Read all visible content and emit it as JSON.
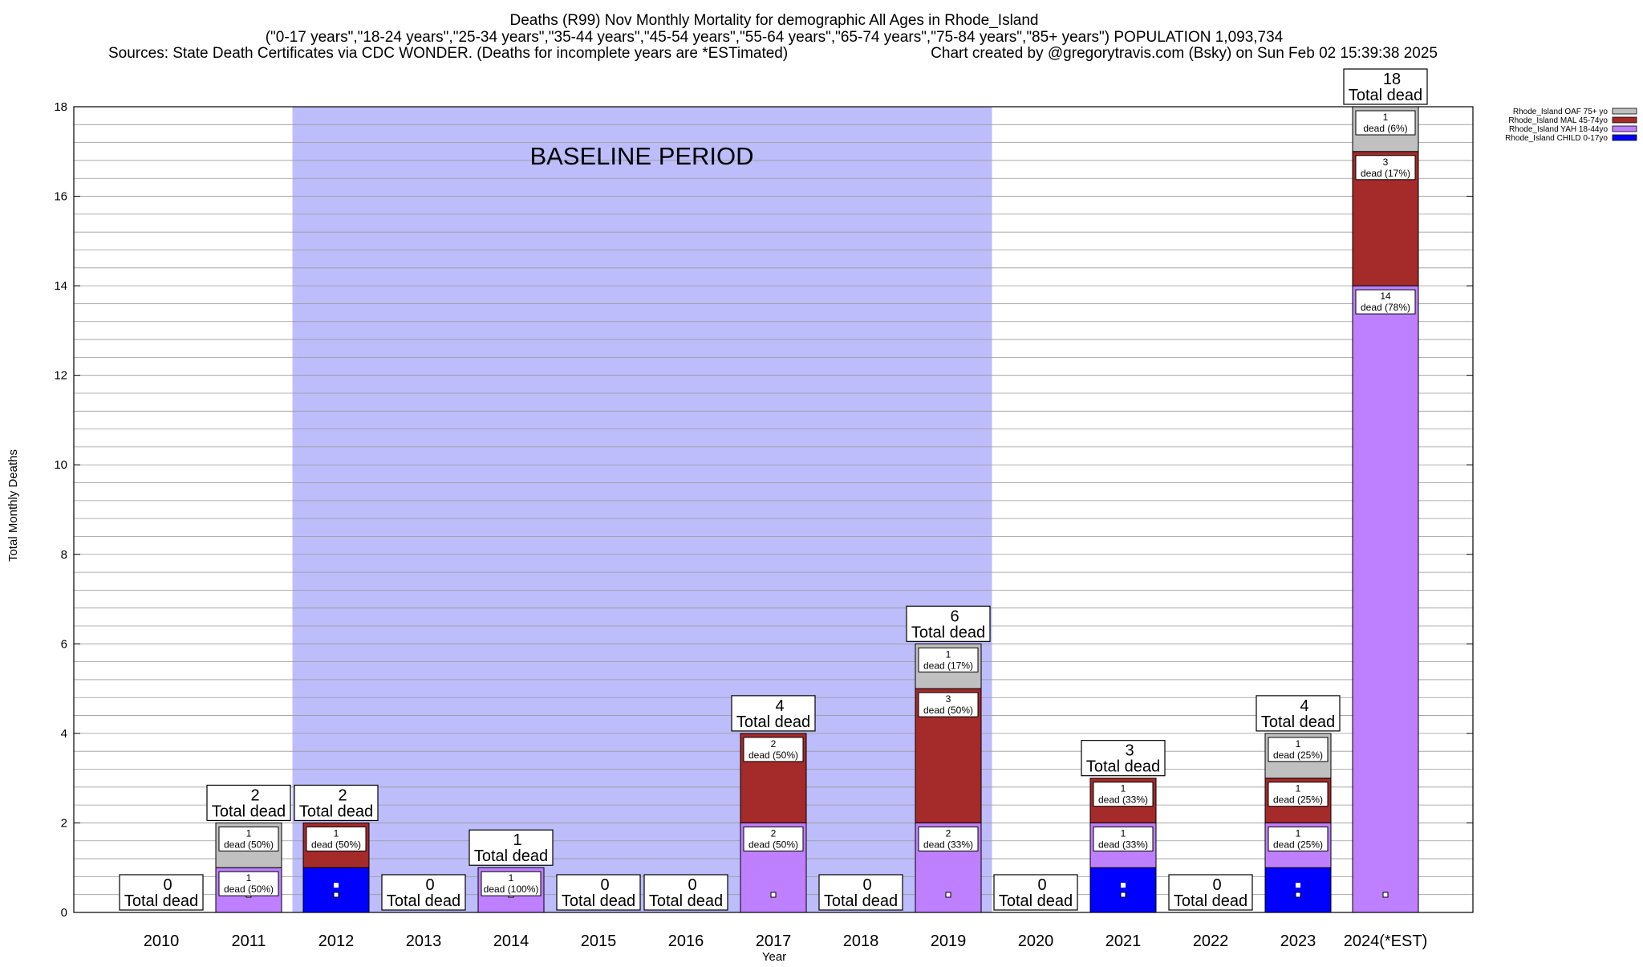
{
  "title": {
    "line1": "Deaths (R99) Nov Monthly Mortality for demographic All Ages in Rhode_Island",
    "line2": "(\"0-17 years\",\"18-24 years\",\"25-34 years\",\"35-44 years\",\"45-54 years\",\"55-64 years\",\"65-74 years\",\"75-84 years\",\"85+ years\") POPULATION 1,093,734",
    "line3_left": "Sources: State Death Certificates via CDC WONDER. (Deaths for incomplete years are *ESTimated)",
    "line3_right": "Chart created by @gregorytravis.com (Bsky) on Sun Feb 02 15:39:38 2025"
  },
  "baseline_label": "BASELINE PERIOD",
  "total_word": "Total dead",
  "colors": {
    "baseline_band": "#bdbdfb",
    "CHILD": "#0000ff",
    "YAH": "#bf80ff",
    "MAL": "#a52a2a",
    "OAF": "#c0c0c0"
  },
  "chart_data": {
    "type": "bar",
    "stacked": true,
    "xlabel": "Year",
    "ylabel": "Total Monthly Deaths",
    "ylim": [
      0,
      18
    ],
    "y_ticks": [
      "0",
      "2",
      "4",
      "6",
      "8",
      "10",
      "12",
      "14",
      "16",
      "18"
    ],
    "grid": true,
    "legend_position": "top-right",
    "baseline_period": [
      "2012",
      "2019"
    ],
    "categories": [
      "2010",
      "2011",
      "2012",
      "2013",
      "2014",
      "2015",
      "2016",
      "2017",
      "2018",
      "2019",
      "2020",
      "2021",
      "2022",
      "2023",
      "2024(*EST)"
    ],
    "series": [
      {
        "key": "CHILD",
        "name": "Rhode_Island CHILD 0-17yo",
        "values": [
          0,
          0,
          1,
          0,
          0,
          0,
          0,
          0,
          0,
          0,
          0,
          1,
          0,
          1,
          0
        ]
      },
      {
        "key": "YAH",
        "name": "Rhode_Island YAH 18-44yo",
        "values": [
          0,
          1,
          0,
          0,
          1,
          0,
          0,
          2,
          0,
          2,
          0,
          1,
          0,
          1,
          14
        ]
      },
      {
        "key": "MAL",
        "name": "Rhode_Island MAL 45-74yo",
        "values": [
          0,
          0,
          1,
          0,
          0,
          0,
          0,
          2,
          0,
          3,
          0,
          1,
          0,
          1,
          3
        ]
      },
      {
        "key": "OAF",
        "name": "Rhode_Island OAF 75+ yo",
        "values": [
          0,
          1,
          0,
          0,
          0,
          0,
          0,
          0,
          0,
          1,
          0,
          0,
          0,
          1,
          1
        ]
      }
    ],
    "legend_order": [
      "OAF",
      "MAL",
      "YAH",
      "CHILD"
    ],
    "totals": [
      "0",
      "2",
      "2",
      "0",
      "1",
      "0",
      "0",
      "4",
      "0",
      "6",
      "0",
      "3",
      "0",
      "4",
      "18"
    ],
    "segment_labels": [
      [],
      [
        {
          "series": "YAH",
          "count": "1",
          "pct": "dead (50%)"
        },
        {
          "series": "OAF",
          "count": "1",
          "pct": "dead (50%)"
        }
      ],
      [
        {
          "series": "MAL",
          "count": "1",
          "pct": "dead (50%)"
        }
      ],
      [],
      [
        {
          "series": "YAH",
          "count": "1",
          "pct": "dead (100%)"
        }
      ],
      [],
      [],
      [
        {
          "series": "YAH",
          "count": "2",
          "pct": "dead (50%)"
        },
        {
          "series": "MAL",
          "count": "2",
          "pct": "dead (50%)"
        }
      ],
      [],
      [
        {
          "series": "YAH",
          "count": "2",
          "pct": "dead (33%)"
        },
        {
          "series": "MAL",
          "count": "3",
          "pct": "dead (50%)"
        },
        {
          "series": "OAF",
          "count": "1",
          "pct": "dead (17%)"
        }
      ],
      [],
      [
        {
          "series": "YAH",
          "count": "1",
          "pct": "dead (33%)"
        },
        {
          "series": "MAL",
          "count": "1",
          "pct": "dead (33%)"
        }
      ],
      [],
      [
        {
          "series": "YAH",
          "count": "1",
          "pct": "dead (25%)"
        },
        {
          "series": "MAL",
          "count": "1",
          "pct": "dead (25%)"
        },
        {
          "series": "OAF",
          "count": "1",
          "pct": "dead (25%)"
        }
      ],
      [
        {
          "series": "YAH",
          "count": "14",
          "pct": "dead (78%)"
        },
        {
          "series": "MAL",
          "count": "3",
          "pct": "dead (17%)"
        },
        {
          "series": "OAF",
          "count": "1",
          "pct": "dead (6%)"
        }
      ]
    ]
  }
}
